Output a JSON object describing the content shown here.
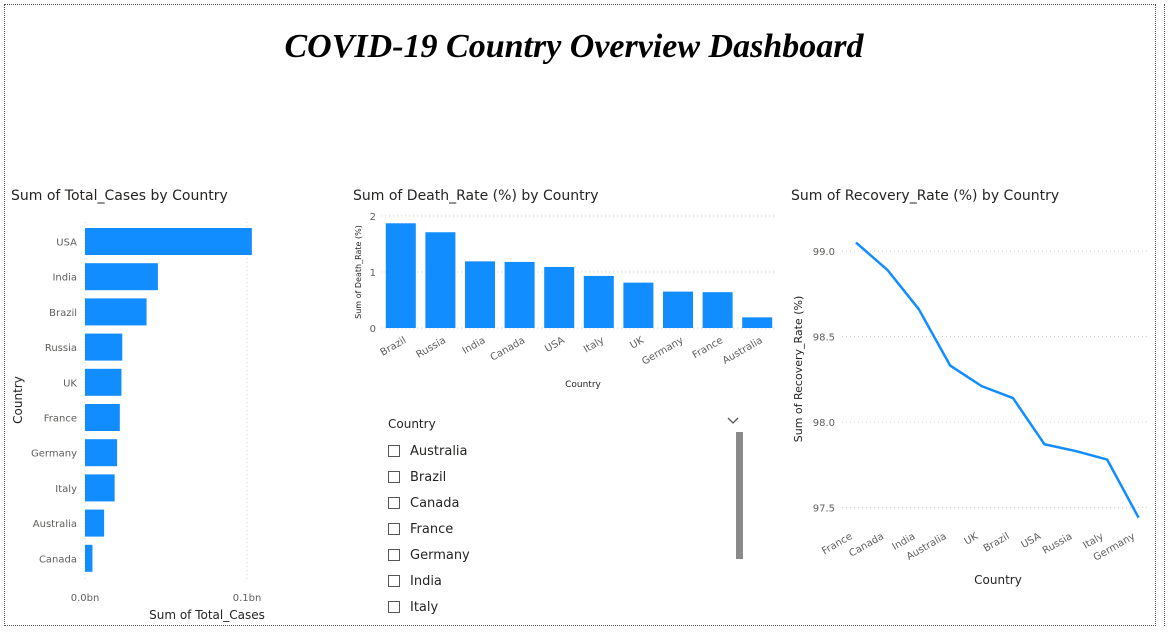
{
  "dashboard": {
    "title": "COVID-19 Country Overview Dashboard"
  },
  "chart_data": [
    {
      "type": "bar",
      "orientation": "horizontal",
      "title": "Sum of Total_Cases by Country",
      "xlabel": "Sum of Total_Cases",
      "ylabel": "Country",
      "categories": [
        "USA",
        "India",
        "Brazil",
        "Russia",
        "UK",
        "France",
        "Germany",
        "Italy",
        "Australia",
        "Canada"
      ],
      "values": [
        103000000,
        45000000,
        38000000,
        23000000,
        22500000,
        21500000,
        19800000,
        18300000,
        11800000,
        4600000
      ],
      "xlim": [
        0,
        100000000
      ],
      "x_ticks": [
        {
          "value": 0,
          "label": "0.0bn"
        },
        {
          "value": 100000000,
          "label": "0.1bn"
        }
      ],
      "color": "#118DFF"
    },
    {
      "type": "bar",
      "title": "Sum of Death_Rate (%) by Country",
      "xlabel": "Country",
      "ylabel": "Sum of Death_Rate (%)",
      "categories": [
        "Brazil",
        "Russia",
        "India",
        "Canada",
        "USA",
        "Italy",
        "UK",
        "Germany",
        "France",
        "Australia"
      ],
      "values": [
        1.87,
        1.71,
        1.19,
        1.18,
        1.09,
        0.93,
        0.81,
        0.65,
        0.64,
        0.19
      ],
      "ylim": [
        0,
        2
      ],
      "y_ticks": [
        0,
        1,
        2
      ],
      "color": "#118DFF"
    },
    {
      "type": "line",
      "title": "Sum of Recovery_Rate (%) by Country",
      "xlabel": "Country",
      "ylabel": "Sum of Recovery_Rate (%)",
      "categories": [
        "France",
        "Canada",
        "India",
        "Australia",
        "UK",
        "Brazil",
        "USA",
        "Russia",
        "Italy",
        "Germany"
      ],
      "values": [
        99.05,
        98.89,
        98.66,
        98.33,
        98.21,
        98.14,
        97.87,
        97.83,
        97.78,
        97.44
      ],
      "ylim": [
        97.45,
        99.1
      ],
      "y_ticks": [
        97.5,
        98.0,
        98.5,
        99.0
      ],
      "y_tick_labels": [
        "97.5",
        "98.0",
        "98.5",
        "99.0"
      ],
      "color": "#118DFF"
    }
  ],
  "slicer": {
    "header": "Country",
    "items": [
      "Australia",
      "Brazil",
      "Canada",
      "France",
      "Germany",
      "India",
      "Italy"
    ]
  }
}
